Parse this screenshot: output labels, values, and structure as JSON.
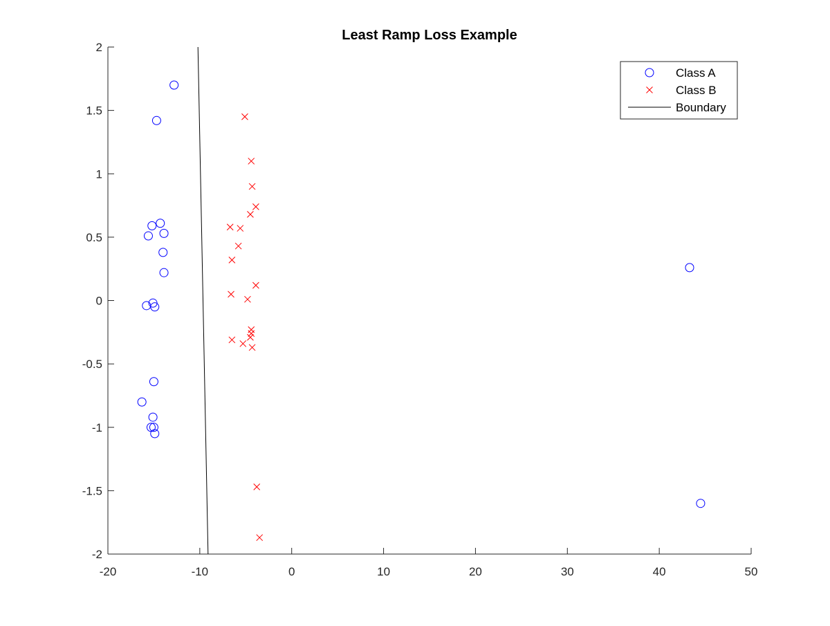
{
  "chart_data": {
    "type": "scatter",
    "title": "Least Ramp Loss Example",
    "xlabel": "",
    "ylabel": "",
    "xlim": [
      -20,
      50
    ],
    "ylim": [
      -2,
      2
    ],
    "xticks": [
      -20,
      -10,
      0,
      10,
      20,
      30,
      40,
      50
    ],
    "yticks": [
      -2,
      -1.5,
      -1,
      -0.5,
      0,
      0.5,
      1,
      1.5,
      2
    ],
    "grid": false,
    "legend_position": "top-right",
    "series": [
      {
        "name": "Class A",
        "marker": "circle",
        "color": "#0000FF",
        "points": [
          [
            -12.8,
            1.7
          ],
          [
            -14.7,
            1.42
          ],
          [
            -15.2,
            0.59
          ],
          [
            -14.3,
            0.61
          ],
          [
            -15.6,
            0.51
          ],
          [
            -13.9,
            0.53
          ],
          [
            -14.0,
            0.38
          ],
          [
            -13.9,
            0.22
          ],
          [
            -15.8,
            -0.04
          ],
          [
            -15.1,
            -0.02
          ],
          [
            -14.9,
            -0.05
          ],
          [
            -15.0,
            -0.64
          ],
          [
            -16.3,
            -0.8
          ],
          [
            -15.1,
            -0.92
          ],
          [
            -15.3,
            -1.0
          ],
          [
            -15.0,
            -1.0
          ],
          [
            -14.9,
            -1.05
          ],
          [
            43.3,
            0.26
          ],
          [
            44.5,
            -1.6
          ]
        ]
      },
      {
        "name": "Class B",
        "marker": "x",
        "color": "#FF0000",
        "points": [
          [
            -5.1,
            1.45
          ],
          [
            -4.4,
            1.1
          ],
          [
            -4.3,
            0.9
          ],
          [
            -3.9,
            0.74
          ],
          [
            -4.5,
            0.68
          ],
          [
            -6.7,
            0.58
          ],
          [
            -5.6,
            0.57
          ],
          [
            -5.8,
            0.43
          ],
          [
            -6.5,
            0.32
          ],
          [
            -3.9,
            0.12
          ],
          [
            -6.6,
            0.05
          ],
          [
            -4.8,
            0.01
          ],
          [
            -4.4,
            -0.23
          ],
          [
            -4.4,
            -0.26
          ],
          [
            -4.5,
            -0.29
          ],
          [
            -6.5,
            -0.31
          ],
          [
            -5.3,
            -0.34
          ],
          [
            -4.3,
            -0.37
          ],
          [
            -3.8,
            -1.47
          ],
          [
            -3.5,
            -1.87
          ]
        ]
      },
      {
        "name": "Boundary",
        "marker": "line",
        "color": "#000000",
        "points": [
          [
            -10.2,
            2
          ],
          [
            -9.1,
            -2
          ]
        ]
      }
    ]
  }
}
